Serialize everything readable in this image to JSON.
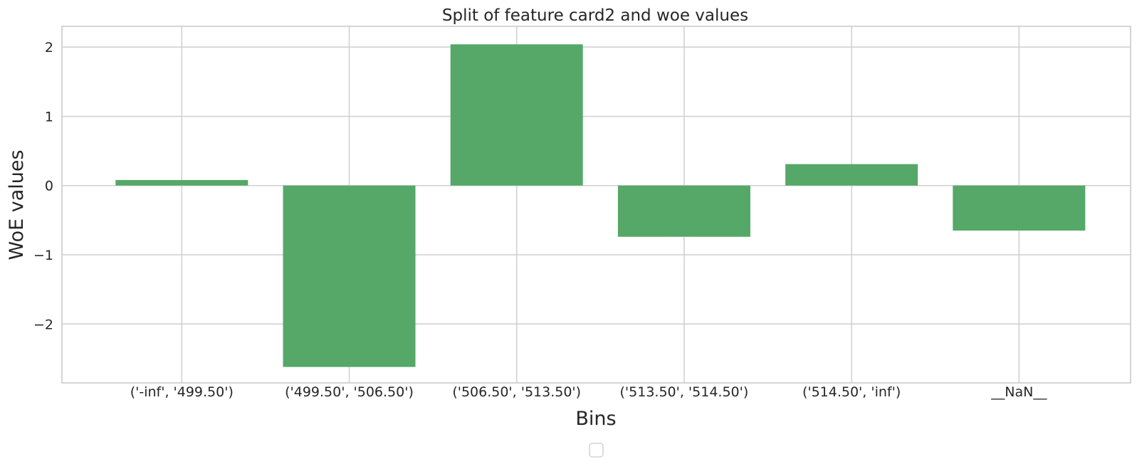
{
  "chart_data": {
    "type": "bar",
    "title": "Split of feature card2 and woe values",
    "xlabel": "Bins",
    "ylabel": "WoE values",
    "categories": [
      "('-inf', '499.50')",
      "('499.50', '506.50')",
      "('506.50', '513.50')",
      "('513.50', '514.50')",
      "('514.50', 'inf')",
      "__NaN__"
    ],
    "values": [
      0.08,
      -2.62,
      2.04,
      -0.74,
      0.31,
      -0.65
    ],
    "ylim": [
      -2.85,
      2.3
    ],
    "yticks": [
      2,
      1,
      0,
      -1,
      -2
    ],
    "ytick_labels": [
      "2",
      "1",
      "0",
      "−1",
      "−2"
    ],
    "grid": true,
    "legend": "bottom-center (empty)",
    "bar_color": "#55a868",
    "grid_color": "#cfcfcf"
  }
}
